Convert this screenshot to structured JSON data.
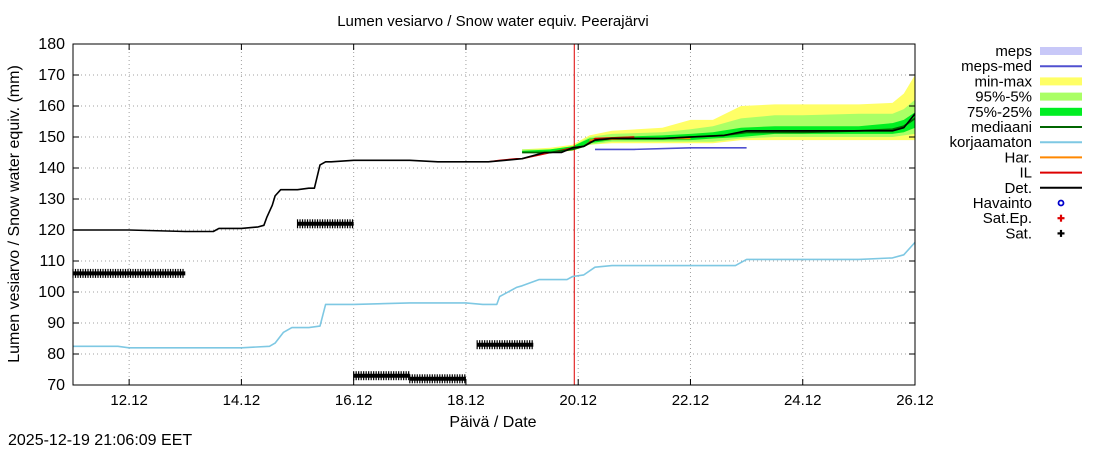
{
  "chart_data": {
    "type": "line",
    "title": "Lumen vesiarvo / Snow water equiv.  Peerajärvi",
    "xlabel": "Päivä / Date",
    "ylabel": "Lumen vesiarvo / Snow water equiv. (mm)",
    "timestamp": "2025-12-19 21:06:09 EET",
    "x_unit": "day of December 2025",
    "xlim": [
      11.0,
      26.0
    ],
    "ylim": [
      70,
      180
    ],
    "yticks": [
      70,
      80,
      90,
      100,
      110,
      120,
      130,
      140,
      150,
      160,
      170,
      180
    ],
    "xticks": [
      {
        "x": 12,
        "label": "12.12"
      },
      {
        "x": 14,
        "label": "14.12"
      },
      {
        "x": 16,
        "label": "16.12"
      },
      {
        "x": 18,
        "label": "18.12"
      },
      {
        "x": 20,
        "label": "20.12"
      },
      {
        "x": 22,
        "label": "22.12"
      },
      {
        "x": 24,
        "label": "24.12"
      },
      {
        "x": 26,
        "label": "26.12"
      }
    ],
    "grid": true,
    "forecast_start_x": 19.93,
    "legend": [
      {
        "key": "meps",
        "label": "meps",
        "style": "box",
        "color": "#c8c8f8"
      },
      {
        "key": "meps_med",
        "label": "meps-med",
        "style": "line",
        "color": "#5050d0"
      },
      {
        "key": "min_max",
        "label": "min-max",
        "style": "box",
        "color": "#ffff66"
      },
      {
        "key": "p95_5",
        "label": "95%-5%",
        "style": "box",
        "color": "#aaff66"
      },
      {
        "key": "p75_25",
        "label": "75%-25%",
        "style": "box",
        "color": "#00ee22"
      },
      {
        "key": "mediaani",
        "label": "mediaani",
        "style": "line",
        "color": "#006600"
      },
      {
        "key": "korjaamaton",
        "label": "korjaamaton",
        "style": "line",
        "color": "#7ec8e3"
      },
      {
        "key": "har",
        "label": "Har.",
        "style": "line",
        "color": "#ff8800"
      },
      {
        "key": "il",
        "label": "IL",
        "style": "line",
        "color": "#dd0000"
      },
      {
        "key": "det",
        "label": "Det.",
        "style": "line",
        "color": "#000000"
      },
      {
        "key": "havainto",
        "label": "Havainto",
        "style": "circle",
        "color": "#0000cc"
      },
      {
        "key": "sat_ep",
        "label": "Sat.Ep.",
        "style": "plus",
        "color": "#dd0000"
      },
      {
        "key": "sat",
        "label": "Sat.",
        "style": "plus",
        "color": "#000000"
      }
    ],
    "bands": [
      {
        "name": "min-max",
        "color": "#ffff66",
        "x": [
          19.0,
          19.5,
          19.9,
          20.2,
          20.6,
          21.5,
          22.0,
          22.4,
          22.9,
          23.5,
          24.0,
          25.0,
          25.6,
          25.8,
          26.0
        ],
        "low": [
          145.0,
          145.0,
          145.5,
          147.5,
          148.0,
          148.0,
          148.0,
          148.0,
          149.0,
          149.0,
          149.0,
          149.0,
          149.0,
          149.0,
          149.0
        ],
        "high": [
          146.0,
          146.5,
          147.5,
          150.5,
          152.0,
          153.0,
          155.5,
          155.5,
          160.0,
          160.5,
          160.5,
          160.5,
          161.0,
          164.0,
          170.0
        ]
      },
      {
        "name": "95%-5%",
        "color": "#aaff66",
        "x": [
          19.0,
          19.5,
          19.9,
          20.2,
          20.6,
          21.5,
          22.0,
          22.4,
          22.9,
          23.5,
          24.0,
          25.0,
          25.6,
          25.8,
          26.0
        ],
        "low": [
          145.0,
          145.0,
          146.0,
          147.5,
          148.5,
          148.5,
          148.5,
          148.5,
          149.5,
          150.0,
          150.0,
          150.0,
          150.0,
          150.5,
          151.0
        ],
        "high": [
          146.0,
          146.0,
          147.0,
          150.0,
          151.0,
          151.5,
          152.5,
          153.5,
          156.0,
          157.0,
          157.0,
          157.5,
          157.5,
          159.0,
          162.0
        ]
      },
      {
        "name": "75%-25%",
        "color": "#00ee22",
        "x": [
          19.0,
          19.5,
          19.9,
          20.2,
          20.6,
          21.5,
          22.0,
          22.4,
          22.9,
          23.5,
          24.0,
          25.0,
          25.6,
          25.8,
          26.0
        ],
        "low": [
          145.0,
          145.0,
          146.0,
          148.0,
          149.0,
          149.0,
          149.0,
          149.5,
          150.0,
          151.0,
          151.0,
          151.0,
          151.0,
          151.5,
          153.0
        ],
        "high": [
          145.5,
          146.0,
          147.0,
          149.5,
          150.0,
          150.5,
          151.0,
          151.5,
          153.0,
          153.5,
          153.5,
          153.5,
          154.5,
          155.5,
          158.0
        ]
      }
    ],
    "series": [
      {
        "name": "korjaamaton",
        "color": "#7ec8e3",
        "width": 1.6,
        "x": [
          11.0,
          11.8,
          12.0,
          13.0,
          13.5,
          14.0,
          14.5,
          14.6,
          14.75,
          14.9,
          15.2,
          15.4,
          15.5,
          16.0,
          17.0,
          17.5,
          18.0,
          18.3,
          18.55,
          18.6,
          18.9,
          19.0,
          19.3,
          19.8,
          19.9,
          20.1,
          20.3,
          20.6,
          21.0,
          22.0,
          22.8,
          23.0,
          24.0,
          24.5,
          25.0,
          25.6,
          25.8,
          26.0
        ],
        "y": [
          82.5,
          82.5,
          82.0,
          82.0,
          82.0,
          82.0,
          82.5,
          83.5,
          87.0,
          88.5,
          88.5,
          89.0,
          96.0,
          96.0,
          96.5,
          96.5,
          96.5,
          96.0,
          96.0,
          98.5,
          101.5,
          102.0,
          104.0,
          104.0,
          105.0,
          105.5,
          108.0,
          108.5,
          108.5,
          108.5,
          108.5,
          110.5,
          110.5,
          110.5,
          110.5,
          111.0,
          112.0,
          116.0
        ]
      },
      {
        "name": "meps-med",
        "color": "#5050d0",
        "width": 1.6,
        "x": [
          20.3,
          21.0,
          22.0,
          23.0
        ],
        "y": [
          146.0,
          146.0,
          146.5,
          146.5
        ]
      },
      {
        "name": "IL",
        "color": "#dd0000",
        "width": 1.4,
        "x": [
          18.4,
          18.6,
          18.9,
          19.0,
          19.9,
          20.1,
          20.3,
          21.0
        ],
        "y": [
          142.0,
          142.5,
          143.0,
          143.0,
          146.5,
          147.0,
          149.5,
          150.0
        ]
      },
      {
        "name": "Har.",
        "color": "#ff8800",
        "width": 1.4,
        "x": [
          20.2,
          21.0,
          22.0
        ],
        "y": [
          149.0,
          149.5,
          149.5
        ]
      },
      {
        "name": "mediaani",
        "color": "#006600",
        "width": 1.8,
        "x": [
          19.0,
          19.5,
          19.9,
          20.1,
          20.3,
          20.6,
          21.5,
          22.0,
          22.6,
          23.0,
          24.0,
          25.0,
          25.6,
          25.8,
          26.0
        ],
        "y": [
          145.0,
          145.0,
          146.0,
          147.0,
          149.0,
          149.5,
          149.5,
          150.0,
          150.5,
          151.5,
          151.5,
          152.0,
          152.5,
          153.5,
          156.0
        ]
      },
      {
        "name": "Det.",
        "color": "#000000",
        "width": 1.6,
        "x": [
          11.0,
          12.0,
          13.0,
          13.5,
          13.6,
          14.0,
          14.3,
          14.4,
          14.45,
          14.55,
          14.6,
          14.7,
          14.8,
          15.0,
          15.2,
          15.3,
          15.4,
          15.5,
          15.6,
          16.0,
          17.0,
          17.5,
          18.0,
          18.4,
          18.7,
          19.0,
          19.4,
          19.7,
          19.9,
          20.1,
          20.3,
          20.6,
          21.5,
          22.0,
          22.6,
          23.0,
          24.0,
          25.0,
          25.6,
          25.8,
          26.0
        ],
        "y": [
          120.0,
          120.0,
          119.5,
          119.5,
          120.5,
          120.5,
          121.0,
          121.5,
          124.0,
          128.0,
          131.0,
          133.0,
          133.0,
          133.0,
          133.5,
          133.5,
          141.0,
          142.0,
          142.0,
          142.5,
          142.5,
          142.0,
          142.0,
          142.0,
          142.5,
          143.0,
          145.0,
          145.0,
          146.5,
          147.0,
          149.0,
          149.5,
          149.5,
          150.0,
          150.5,
          152.0,
          152.0,
          152.0,
          152.0,
          153.0,
          157.5
        ]
      }
    ],
    "sat_segments": [
      {
        "x1": 11.0,
        "x2": 13.0,
        "y": 106.0
      },
      {
        "x1": 15.0,
        "x2": 16.0,
        "y": 122.0
      },
      {
        "x1": 16.0,
        "x2": 17.0,
        "y": 73.0
      },
      {
        "x1": 17.0,
        "x2": 18.0,
        "y": 72.0
      },
      {
        "x1": 18.2,
        "x2": 19.2,
        "y": 83.0
      }
    ]
  }
}
